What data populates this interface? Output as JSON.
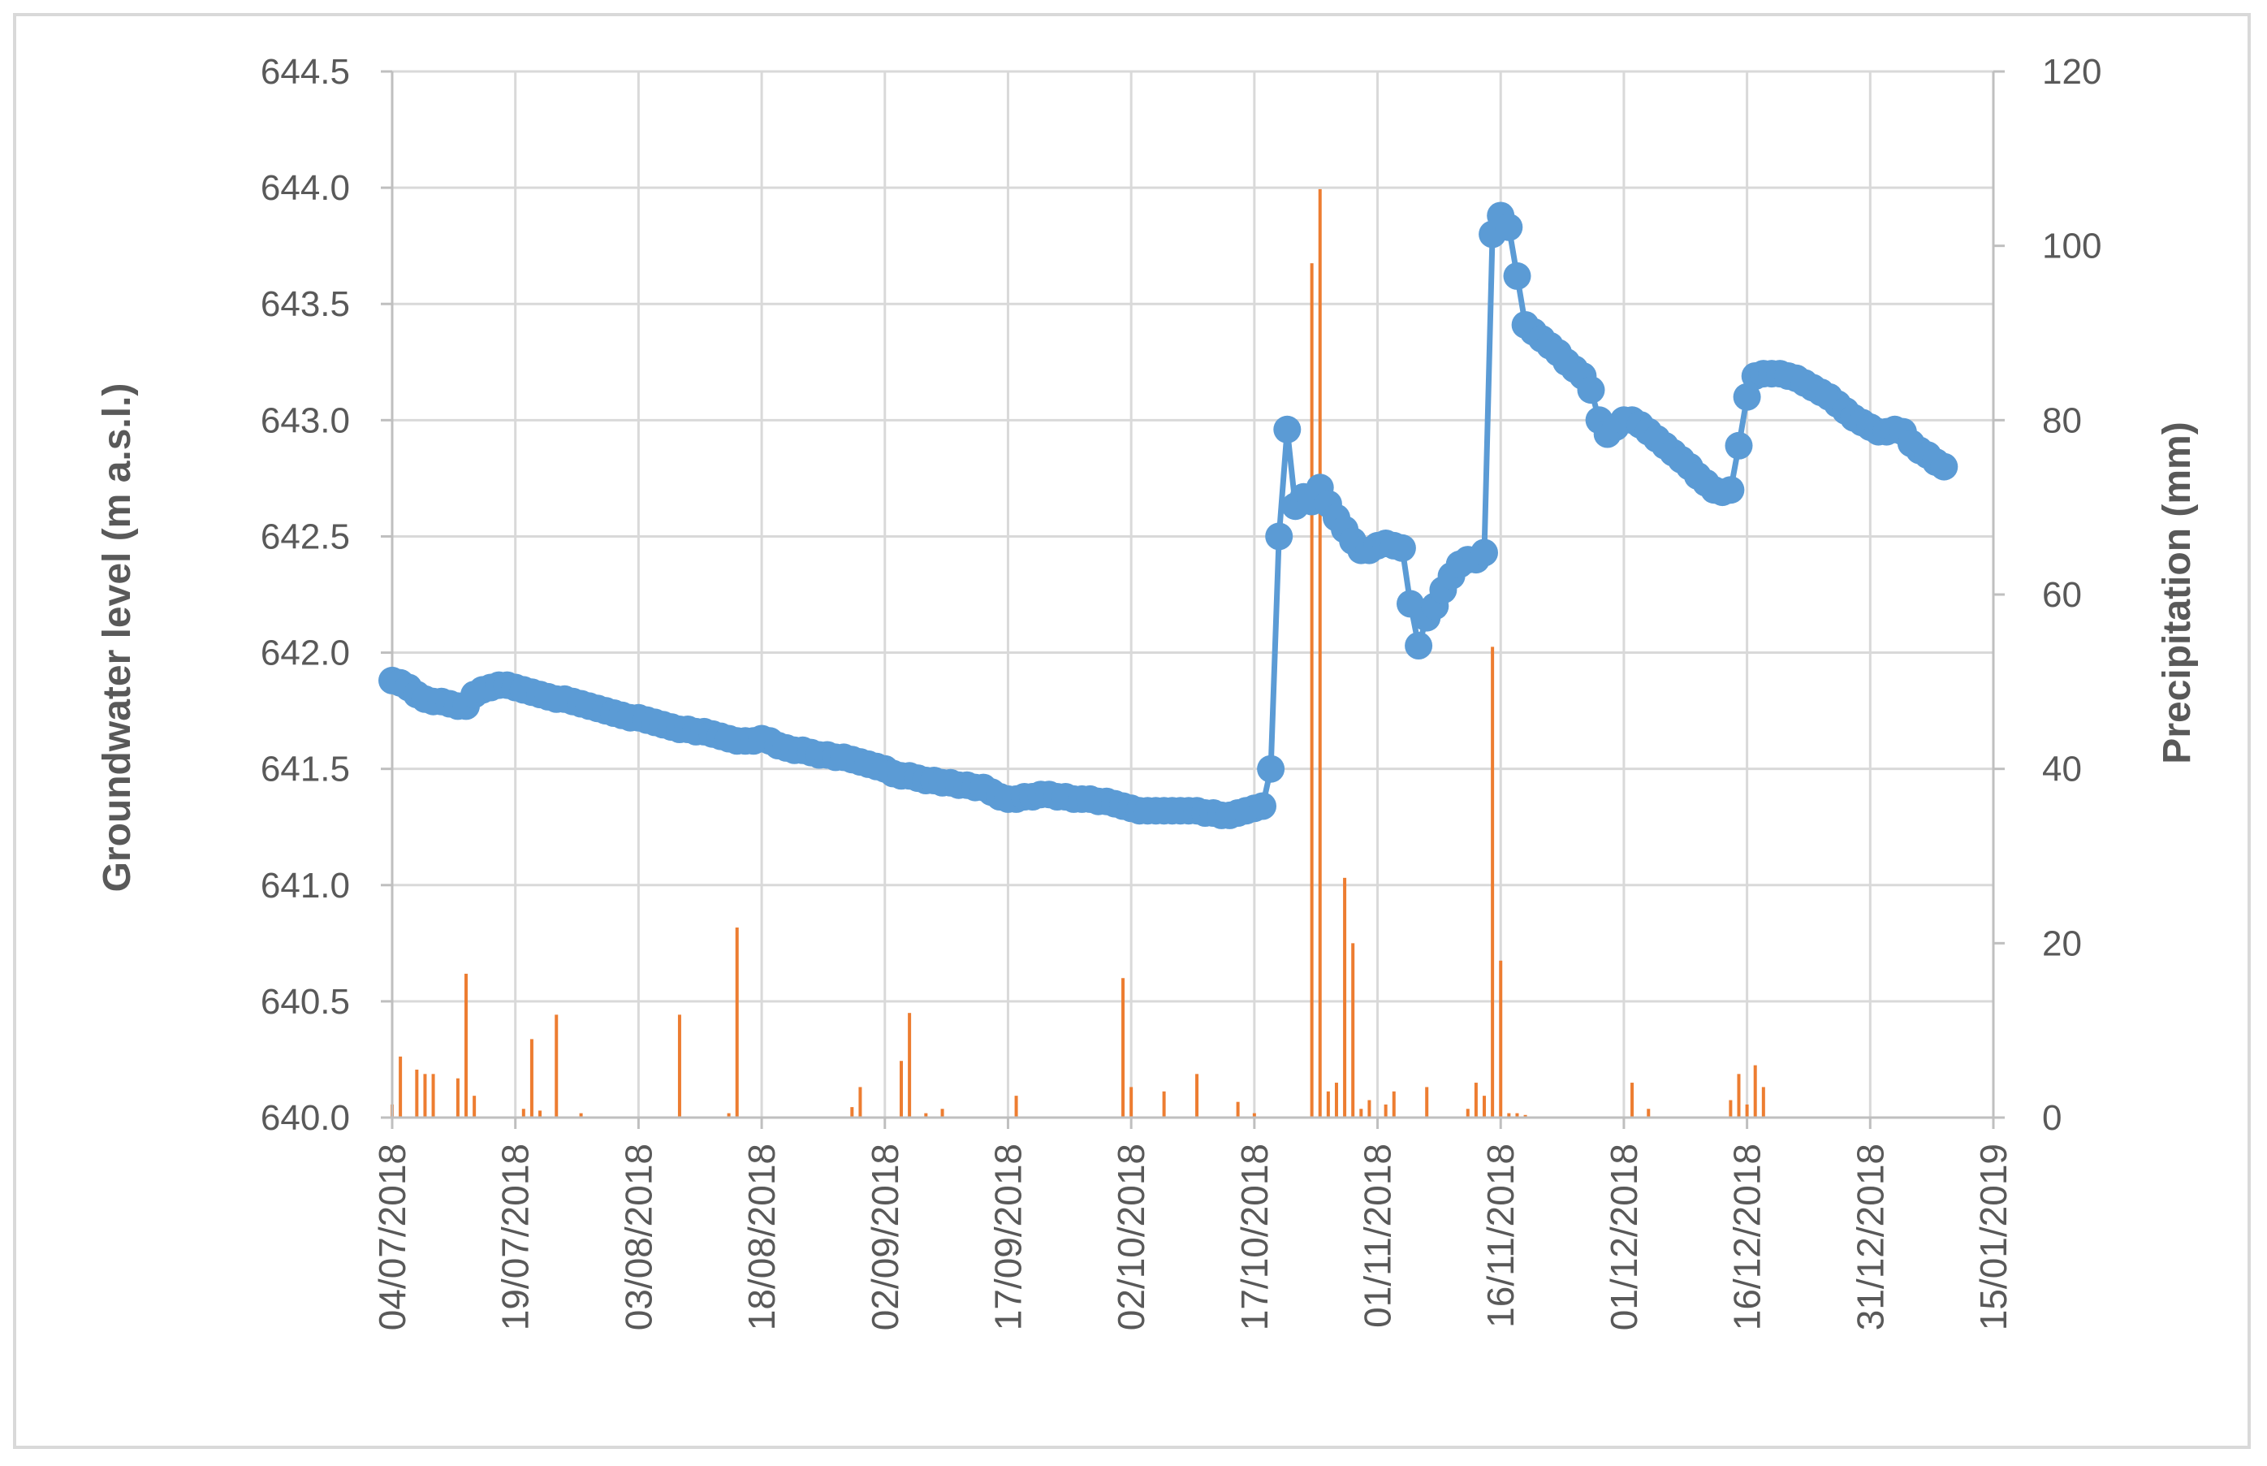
{
  "chart_data": {
    "type": "line",
    "title": "",
    "y1label": "Groundwater level (m a.s.l.)",
    "y2label": "Precipitation (mm)",
    "x_start": "04/07/2018",
    "x_end": "15/01/2019",
    "x_ticks": [
      "04/07/2018",
      "19/07/2018",
      "03/08/2018",
      "18/08/2018",
      "02/09/2018",
      "17/09/2018",
      "02/10/2018",
      "17/10/2018",
      "01/11/2018",
      "16/11/2018",
      "01/12/2018",
      "16/12/2018",
      "31/12/2018",
      "15/01/2019"
    ],
    "y1_ticks": [
      "640.0",
      "640.5",
      "641.0",
      "641.5",
      "642.0",
      "642.5",
      "643.0",
      "643.5",
      "644.0",
      "644.5"
    ],
    "y2_ticks": [
      "0",
      "20",
      "40",
      "60",
      "80",
      "100",
      "120"
    ],
    "y1_range": [
      640.0,
      644.5
    ],
    "y2_range": [
      0,
      120
    ],
    "grid": true,
    "colors": {
      "groundwater": "#5b9bd5",
      "precipitation": "#ed7d31",
      "grid": "#d9d9d9",
      "text": "#595959",
      "frame": "#d9d9d9"
    },
    "series": [
      {
        "kind": "line",
        "axis": "left",
        "points": [
          [
            "04/07/2018",
            641.88
          ],
          [
            "05/07/2018",
            641.87
          ],
          [
            "06/07/2018",
            641.85
          ],
          [
            "07/07/2018",
            641.82
          ],
          [
            "08/07/2018",
            641.8
          ],
          [
            "09/07/2018",
            641.79
          ],
          [
            "10/07/2018",
            641.79
          ],
          [
            "11/07/2018",
            641.78
          ],
          [
            "12/07/2018",
            641.77
          ],
          [
            "13/07/2018",
            641.77
          ],
          [
            "14/07/2018",
            641.82
          ],
          [
            "15/07/2018",
            641.84
          ],
          [
            "16/07/2018",
            641.85
          ],
          [
            "17/07/2018",
            641.86
          ],
          [
            "18/07/2018",
            641.86
          ],
          [
            "19/07/2018",
            641.85
          ],
          [
            "20/07/2018",
            641.84
          ],
          [
            "21/07/2018",
            641.83
          ],
          [
            "22/07/2018",
            641.82
          ],
          [
            "23/07/2018",
            641.81
          ],
          [
            "24/07/2018",
            641.8
          ],
          [
            "25/07/2018",
            641.8
          ],
          [
            "26/07/2018",
            641.79
          ],
          [
            "27/07/2018",
            641.78
          ],
          [
            "28/07/2018",
            641.77
          ],
          [
            "29/07/2018",
            641.76
          ],
          [
            "30/07/2018",
            641.75
          ],
          [
            "31/07/2018",
            641.74
          ],
          [
            "01/08/2018",
            641.73
          ],
          [
            "02/08/2018",
            641.72
          ],
          [
            "03/08/2018",
            641.72
          ],
          [
            "04/08/2018",
            641.71
          ],
          [
            "05/08/2018",
            641.7
          ],
          [
            "06/08/2018",
            641.69
          ],
          [
            "07/08/2018",
            641.68
          ],
          [
            "08/08/2018",
            641.67
          ],
          [
            "09/08/2018",
            641.67
          ],
          [
            "10/08/2018",
            641.66
          ],
          [
            "11/08/2018",
            641.66
          ],
          [
            "12/08/2018",
            641.65
          ],
          [
            "13/08/2018",
            641.64
          ],
          [
            "14/08/2018",
            641.63
          ],
          [
            "15/08/2018",
            641.62
          ],
          [
            "16/08/2018",
            641.62
          ],
          [
            "17/08/2018",
            641.62
          ],
          [
            "18/08/2018",
            641.63
          ],
          [
            "19/08/2018",
            641.62
          ],
          [
            "20/08/2018",
            641.6
          ],
          [
            "21/08/2018",
            641.59
          ],
          [
            "22/08/2018",
            641.58
          ],
          [
            "23/08/2018",
            641.58
          ],
          [
            "24/08/2018",
            641.57
          ],
          [
            "25/08/2018",
            641.56
          ],
          [
            "26/08/2018",
            641.56
          ],
          [
            "27/08/2018",
            641.55
          ],
          [
            "28/08/2018",
            641.55
          ],
          [
            "29/08/2018",
            641.54
          ],
          [
            "30/08/2018",
            641.53
          ],
          [
            "31/08/2018",
            641.52
          ],
          [
            "01/09/2018",
            641.51
          ],
          [
            "02/09/2018",
            641.5
          ],
          [
            "03/09/2018",
            641.48
          ],
          [
            "04/09/2018",
            641.47
          ],
          [
            "05/09/2018",
            641.47
          ],
          [
            "06/09/2018",
            641.46
          ],
          [
            "07/09/2018",
            641.45
          ],
          [
            "08/09/2018",
            641.45
          ],
          [
            "09/09/2018",
            641.44
          ],
          [
            "10/09/2018",
            641.44
          ],
          [
            "11/09/2018",
            641.43
          ],
          [
            "12/09/2018",
            641.43
          ],
          [
            "13/09/2018",
            641.42
          ],
          [
            "14/09/2018",
            641.42
          ],
          [
            "15/09/2018",
            641.4
          ],
          [
            "16/09/2018",
            641.38
          ],
          [
            "17/09/2018",
            641.37
          ],
          [
            "18/09/2018",
            641.37
          ],
          [
            "19/09/2018",
            641.38
          ],
          [
            "20/09/2018",
            641.38
          ],
          [
            "21/09/2018",
            641.39
          ],
          [
            "22/09/2018",
            641.39
          ],
          [
            "23/09/2018",
            641.38
          ],
          [
            "24/09/2018",
            641.38
          ],
          [
            "25/09/2018",
            641.37
          ],
          [
            "26/09/2018",
            641.37
          ],
          [
            "27/09/2018",
            641.37
          ],
          [
            "28/09/2018",
            641.36
          ],
          [
            "29/09/2018",
            641.36
          ],
          [
            "30/09/2018",
            641.35
          ],
          [
            "01/10/2018",
            641.34
          ],
          [
            "02/10/2018",
            641.33
          ],
          [
            "03/10/2018",
            641.32
          ],
          [
            "04/10/2018",
            641.32
          ],
          [
            "05/10/2018",
            641.32
          ],
          [
            "06/10/2018",
            641.32
          ],
          [
            "07/10/2018",
            641.32
          ],
          [
            "08/10/2018",
            641.32
          ],
          [
            "09/10/2018",
            641.32
          ],
          [
            "10/10/2018",
            641.32
          ],
          [
            "11/10/2018",
            641.31
          ],
          [
            "12/10/2018",
            641.31
          ],
          [
            "13/10/2018",
            641.3
          ],
          [
            "14/10/2018",
            641.3
          ],
          [
            "15/10/2018",
            641.31
          ],
          [
            "16/10/2018",
            641.32
          ],
          [
            "17/10/2018",
            641.33
          ],
          [
            "18/10/2018",
            641.34
          ],
          [
            "19/10/2018",
            641.5
          ],
          [
            "20/10/2018",
            642.5
          ],
          [
            "21/10/2018",
            642.96
          ],
          [
            "22/10/2018",
            642.63
          ],
          [
            "23/10/2018",
            642.67
          ],
          [
            "24/10/2018",
            642.65
          ],
          [
            "25/10/2018",
            642.71
          ],
          [
            "26/10/2018",
            642.64
          ],
          [
            "27/10/2018",
            642.58
          ],
          [
            "28/10/2018",
            642.53
          ],
          [
            "29/10/2018",
            642.48
          ],
          [
            "30/10/2018",
            642.44
          ],
          [
            "31/10/2018",
            642.44
          ],
          [
            "01/11/2018",
            642.46
          ],
          [
            "02/11/2018",
            642.47
          ],
          [
            "03/11/2018",
            642.46
          ],
          [
            "04/11/2018",
            642.45
          ],
          [
            "05/11/2018",
            642.21
          ],
          [
            "06/11/2018",
            642.03
          ],
          [
            "07/11/2018",
            642.15
          ],
          [
            "08/11/2018",
            642.2
          ],
          [
            "09/11/2018",
            642.27
          ],
          [
            "10/11/2018",
            642.33
          ],
          [
            "11/11/2018",
            642.38
          ],
          [
            "12/11/2018",
            642.4
          ],
          [
            "13/11/2018",
            642.4
          ],
          [
            "14/11/2018",
            642.43
          ],
          [
            "15/11/2018",
            643.8
          ],
          [
            "16/11/2018",
            643.88
          ],
          [
            "17/11/2018",
            643.83
          ],
          [
            "18/11/2018",
            643.62
          ],
          [
            "19/11/2018",
            643.41
          ],
          [
            "20/11/2018",
            643.38
          ],
          [
            "21/11/2018",
            643.35
          ],
          [
            "22/11/2018",
            643.32
          ],
          [
            "23/11/2018",
            643.29
          ],
          [
            "24/11/2018",
            643.25
          ],
          [
            "25/11/2018",
            643.22
          ],
          [
            "26/11/2018",
            643.19
          ],
          [
            "27/11/2018",
            643.13
          ],
          [
            "28/11/2018",
            643.0
          ],
          [
            "29/11/2018",
            642.94
          ],
          [
            "30/11/2018",
            642.97
          ],
          [
            "01/12/2018",
            643.0
          ],
          [
            "02/12/2018",
            643.0
          ],
          [
            "03/12/2018",
            642.98
          ],
          [
            "04/12/2018",
            642.95
          ],
          [
            "05/12/2018",
            642.92
          ],
          [
            "06/12/2018",
            642.89
          ],
          [
            "07/12/2018",
            642.86
          ],
          [
            "08/12/2018",
            642.83
          ],
          [
            "09/12/2018",
            642.8
          ],
          [
            "10/12/2018",
            642.76
          ],
          [
            "11/12/2018",
            642.73
          ],
          [
            "12/12/2018",
            642.7
          ],
          [
            "13/12/2018",
            642.69
          ],
          [
            "14/12/2018",
            642.7
          ],
          [
            "15/12/2018",
            642.89
          ],
          [
            "16/12/2018",
            643.1
          ],
          [
            "17/12/2018",
            643.19
          ],
          [
            "18/12/2018",
            643.2
          ],
          [
            "19/12/2018",
            643.2
          ],
          [
            "20/12/2018",
            643.2
          ],
          [
            "21/12/2018",
            643.19
          ],
          [
            "22/12/2018",
            643.18
          ],
          [
            "23/12/2018",
            643.16
          ],
          [
            "24/12/2018",
            643.14
          ],
          [
            "25/12/2018",
            643.12
          ],
          [
            "26/12/2018",
            643.1
          ],
          [
            "27/12/2018",
            643.07
          ],
          [
            "28/12/2018",
            643.04
          ],
          [
            "29/12/2018",
            643.01
          ],
          [
            "30/12/2018",
            642.99
          ],
          [
            "31/12/2018",
            642.97
          ],
          [
            "01/01/2019",
            642.95
          ],
          [
            "02/01/2019",
            642.95
          ],
          [
            "03/01/2019",
            642.96
          ],
          [
            "04/01/2019",
            642.95
          ],
          [
            "05/01/2019",
            642.9
          ],
          [
            "06/01/2019",
            642.87
          ],
          [
            "07/01/2019",
            642.85
          ],
          [
            "08/01/2019",
            642.82
          ],
          [
            "09/01/2019",
            642.8
          ]
        ]
      },
      {
        "kind": "bar",
        "axis": "right",
        "points": [
          [
            "04/07/2018",
            1.5
          ],
          [
            "05/07/2018",
            7.0
          ],
          [
            "07/07/2018",
            5.5
          ],
          [
            "08/07/2018",
            5.0
          ],
          [
            "09/07/2018",
            5.0
          ],
          [
            "12/07/2018",
            4.5
          ],
          [
            "13/07/2018",
            16.5
          ],
          [
            "14/07/2018",
            2.5
          ],
          [
            "20/07/2018",
            1.0
          ],
          [
            "21/07/2018",
            9.0
          ],
          [
            "22/07/2018",
            0.8
          ],
          [
            "24/07/2018",
            11.8
          ],
          [
            "27/07/2018",
            0.5
          ],
          [
            "08/08/2018",
            11.8
          ],
          [
            "14/08/2018",
            0.5
          ],
          [
            "15/08/2018",
            21.8
          ],
          [
            "29/08/2018",
            1.2
          ],
          [
            "30/08/2018",
            3.5
          ],
          [
            "04/09/2018",
            6.5
          ],
          [
            "05/09/2018",
            12.0
          ],
          [
            "07/09/2018",
            0.5
          ],
          [
            "09/09/2018",
            1.0
          ],
          [
            "18/09/2018",
            2.5
          ],
          [
            "01/10/2018",
            16.0
          ],
          [
            "02/10/2018",
            3.5
          ],
          [
            "06/10/2018",
            3.0
          ],
          [
            "10/10/2018",
            5.0
          ],
          [
            "15/10/2018",
            1.8
          ],
          [
            "17/10/2018",
            0.5
          ],
          [
            "24/10/2018",
            98.0
          ],
          [
            "25/10/2018",
            106.5
          ],
          [
            "26/10/2018",
            3.0
          ],
          [
            "27/10/2018",
            4.0
          ],
          [
            "28/10/2018",
            27.5
          ],
          [
            "29/10/2018",
            20.0
          ],
          [
            "30/10/2018",
            1.0
          ],
          [
            "31/10/2018",
            2.0
          ],
          [
            "02/11/2018",
            1.5
          ],
          [
            "03/11/2018",
            3.0
          ],
          [
            "07/11/2018",
            3.5
          ],
          [
            "12/11/2018",
            1.0
          ],
          [
            "13/11/2018",
            4.0
          ],
          [
            "14/11/2018",
            2.5
          ],
          [
            "15/11/2018",
            54.0
          ],
          [
            "16/11/2018",
            18.0
          ],
          [
            "17/11/2018",
            0.5
          ],
          [
            "18/11/2018",
            0.5
          ],
          [
            "19/11/2018",
            0.3
          ],
          [
            "02/12/2018",
            4.0
          ],
          [
            "04/12/2018",
            1.0
          ],
          [
            "14/12/2018",
            2.0
          ],
          [
            "15/12/2018",
            5.0
          ],
          [
            "16/12/2018",
            1.5
          ],
          [
            "17/12/2018",
            6.0
          ],
          [
            "18/12/2018",
            3.5
          ]
        ]
      }
    ]
  }
}
